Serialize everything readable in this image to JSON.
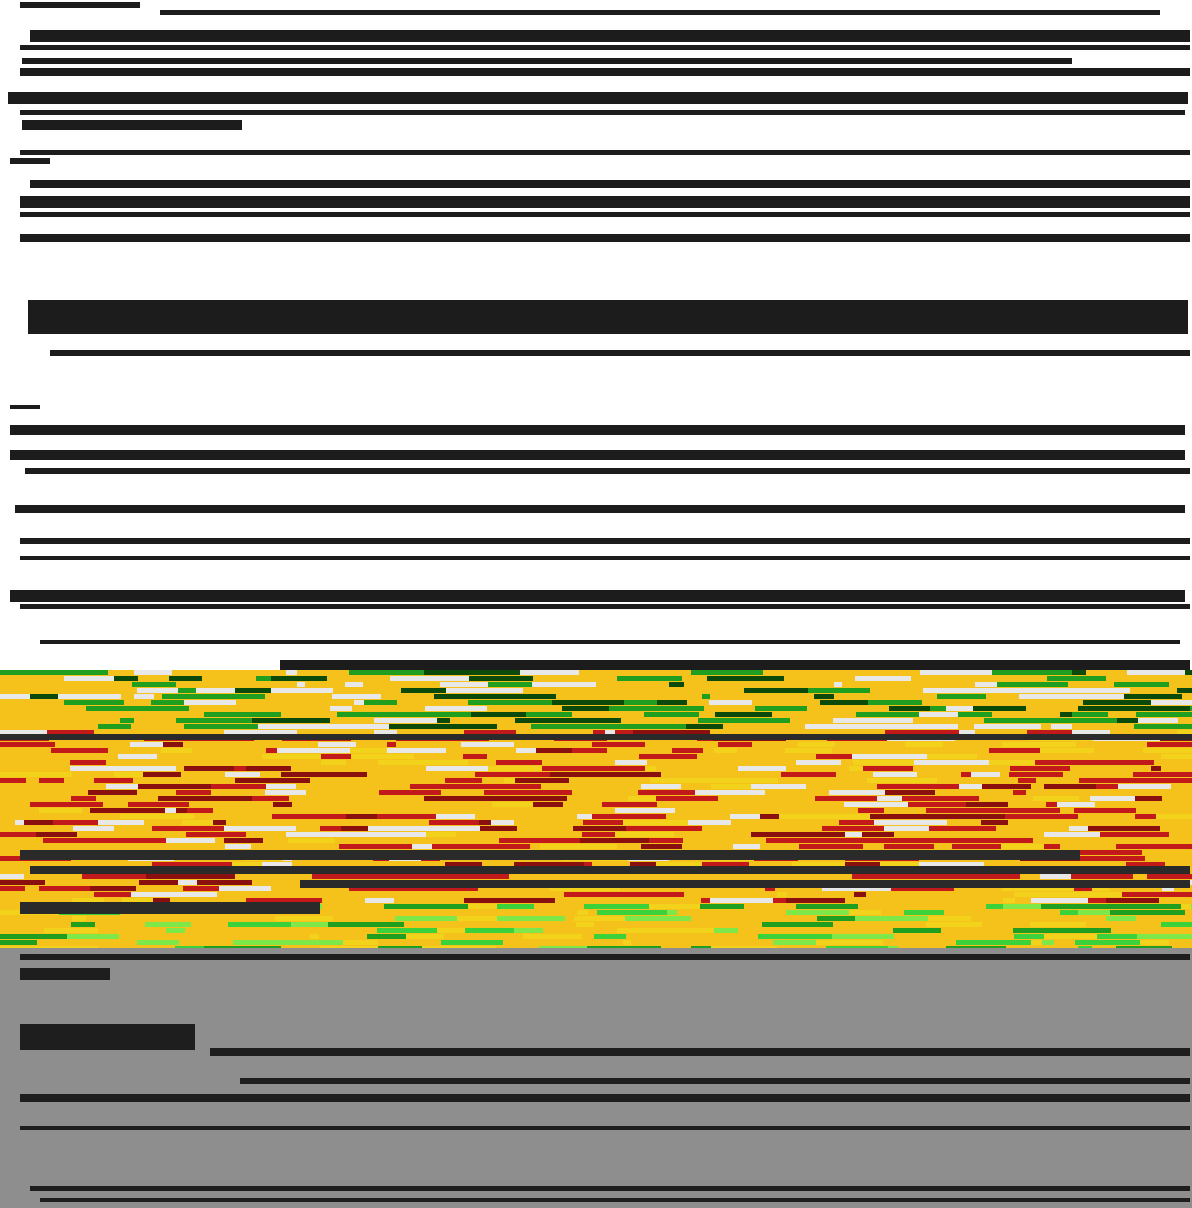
{
  "regions": {
    "top": {
      "background": "#ffffff",
      "line_color": "#1c1c1c"
    },
    "band": {
      "background": "#f5c21b",
      "line_color": "#2a2a2a"
    },
    "bottom": {
      "background": "#8e8e8e",
      "line_color": "#1e1e1e"
    }
  },
  "stamp": {
    "color": "#f2b9b9"
  },
  "band_palette": [
    "#e8e8e8",
    "#1f9e1f",
    "#0b4a0b",
    "#c21a1a",
    "#8a0f0f",
    "#f2d21a",
    "#2f7bd6",
    "#7ee84a",
    "#3ad13a"
  ]
}
